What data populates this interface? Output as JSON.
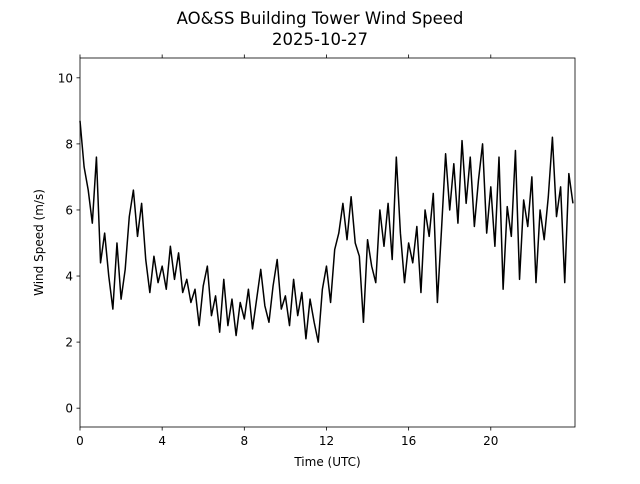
{
  "chart_data": {
    "type": "line",
    "title": "AO&SS Building Tower Wind Speed",
    "subtitle": "2025-10-27",
    "x_label": "Time (UTC)",
    "y_label": "Wind Speed (m/s)",
    "color": "#000000",
    "x": [
      0,
      0.2,
      0.4,
      0.6,
      0.8,
      1.0,
      1.2,
      1.4,
      1.6,
      1.8,
      2.0,
      2.2,
      2.4,
      2.6,
      2.8,
      3.0,
      3.2,
      3.4,
      3.6,
      3.8,
      4.0,
      4.2,
      4.4,
      4.6,
      4.8,
      5.0,
      5.2,
      5.4,
      5.6,
      5.8,
      6.0,
      6.2,
      6.4,
      6.6,
      6.8,
      7.0,
      7.2,
      7.4,
      7.6,
      7.8,
      8.0,
      8.2,
      8.4,
      8.6,
      8.8,
      9.0,
      9.2,
      9.4,
      9.6,
      9.8,
      10.0,
      10.2,
      10.4,
      10.6,
      10.8,
      11.0,
      11.2,
      11.4,
      11.6,
      11.8,
      12.0,
      12.2,
      12.4,
      12.6,
      12.8,
      13.0,
      13.2,
      13.4,
      13.6,
      13.8,
      14.0,
      14.2,
      14.4,
      14.6,
      14.8,
      15.0,
      15.2,
      15.4,
      15.6,
      15.8,
      16.0,
      16.2,
      16.4,
      16.6,
      16.8,
      17.0,
      17.2,
      17.4,
      17.6,
      17.8,
      18.0,
      18.2,
      18.4,
      18.6,
      18.8,
      19.0,
      19.2,
      19.4,
      19.6,
      19.8,
      20.0,
      20.2,
      20.4,
      20.6,
      20.8,
      21.0,
      21.2,
      21.4,
      21.6,
      21.8,
      22.0,
      22.2,
      22.4,
      22.6,
      22.8,
      23.0,
      23.2,
      23.4,
      23.6,
      23.8,
      24.0
    ],
    "values": [
      8.7,
      7.3,
      6.6,
      5.6,
      7.6,
      4.4,
      5.3,
      4.0,
      3.0,
      5.0,
      3.3,
      4.2,
      5.8,
      6.6,
      5.2,
      6.2,
      4.5,
      3.5,
      4.6,
      3.8,
      4.3,
      3.6,
      4.9,
      3.9,
      4.7,
      3.5,
      3.9,
      3.2,
      3.6,
      2.5,
      3.7,
      4.3,
      2.8,
      3.4,
      2.3,
      3.9,
      2.5,
      3.3,
      2.2,
      3.2,
      2.7,
      3.6,
      2.4,
      3.3,
      4.2,
      3.1,
      2.6,
      3.7,
      4.5,
      3.0,
      3.4,
      2.5,
      3.9,
      2.8,
      3.5,
      2.1,
      3.3,
      2.6,
      2.0,
      3.6,
      4.3,
      3.2,
      4.8,
      5.3,
      6.2,
      5.1,
      6.4,
      5.0,
      4.6,
      2.6,
      5.1,
      4.3,
      3.8,
      6.0,
      4.9,
      6.2,
      4.5,
      7.6,
      5.3,
      3.8,
      5.0,
      4.4,
      5.5,
      3.5,
      6.0,
      5.2,
      6.5,
      3.2,
      5.4,
      7.7,
      6.0,
      7.4,
      5.6,
      8.1,
      6.2,
      7.6,
      5.5,
      6.9,
      8.0,
      5.3,
      6.7,
      4.9,
      7.6,
      3.6,
      6.1,
      5.2,
      7.8,
      3.9,
      6.3,
      5.5,
      7.0,
      3.8,
      6.0,
      5.1,
      6.4,
      8.2,
      5.8,
      6.7,
      3.8,
      7.1,
      6.2
    ],
    "xlim": [
      0,
      24.1
    ],
    "ylim": [
      -0.57,
      10.6
    ],
    "xticks": [
      0,
      4,
      8,
      12,
      16,
      20
    ],
    "yticks": [
      0,
      2,
      4,
      6,
      8,
      10
    ]
  }
}
